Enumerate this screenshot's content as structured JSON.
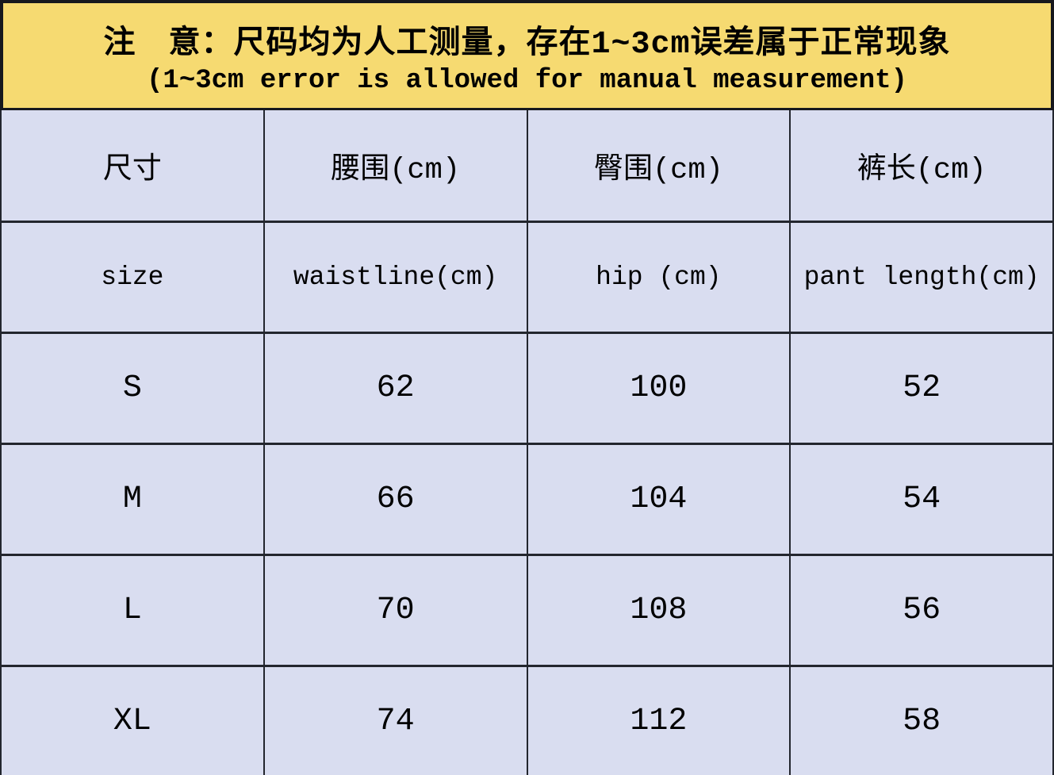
{
  "banner": {
    "line1_cn": "注　意：尺码均为人工测量，存在1~3cm误差属于正常现象",
    "line2_en": "(1~3cm error is allowed for manual measurement)"
  },
  "table": {
    "header_cn": [
      "尺寸",
      "腰围(cm)",
      "臀围(cm)",
      "裤长(cm)"
    ],
    "header_en": [
      "size",
      "waistline(cm)",
      "hip (cm)",
      "pant length(cm)"
    ],
    "rows": [
      [
        "S",
        62,
        100,
        52
      ],
      [
        "M",
        66,
        104,
        54
      ],
      [
        "L",
        70,
        108,
        56
      ],
      [
        "XL",
        74,
        112,
        58
      ]
    ]
  },
  "colors": {
    "banner_background": "#F6DA71",
    "cell_background": "#D9DDF0",
    "border": "#23262E",
    "text": "#000000"
  }
}
